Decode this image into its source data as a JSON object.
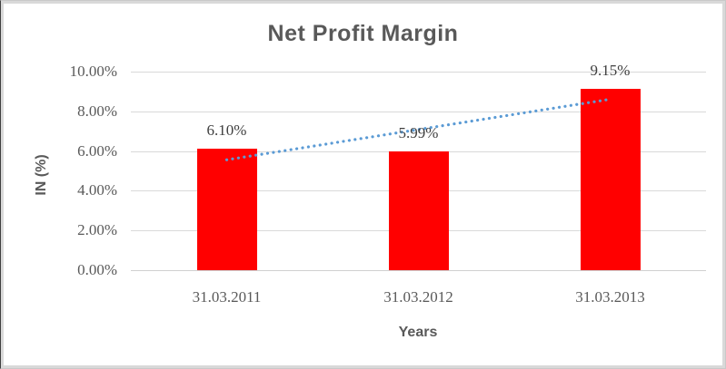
{
  "chart_data": {
    "type": "bar",
    "title": "Net Profit Margin",
    "xlabel": "Years",
    "ylabel": "IN (%)",
    "categories": [
      "31.03.2011",
      "31.03.2012",
      "31.03.2013"
    ],
    "values": [
      6.1,
      5.99,
      9.15
    ],
    "data_labels": [
      "6.10%",
      "5.99%",
      "9.15%"
    ],
    "y_ticks": [
      {
        "value": 0,
        "label": "0.00%"
      },
      {
        "value": 2,
        "label": "2.00%"
      },
      {
        "value": 4,
        "label": "4.00%"
      },
      {
        "value": 6,
        "label": "6.00%"
      },
      {
        "value": 8,
        "label": "8.00%"
      },
      {
        "value": 10,
        "label": "10.00%"
      }
    ],
    "ylim": [
      0,
      10
    ],
    "grid": true,
    "legend": "none",
    "trendline": {
      "type": "linear",
      "style": "dotted",
      "start_value": 5.56,
      "end_value": 8.61
    }
  },
  "colors": {
    "bar": "#FF0000",
    "trendline": "#5B9BD5",
    "gridline": "#D9D9D9",
    "title_text": "#595959",
    "tick_text": "#595959",
    "data_label_text": "#404040"
  }
}
